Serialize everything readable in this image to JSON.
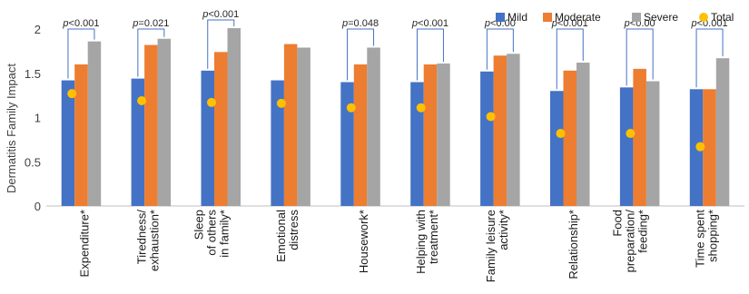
{
  "chart_data": {
    "type": "bar",
    "ylabel": "Dermatitis Family Impact",
    "ylim": [
      0,
      2
    ],
    "yticks": [
      "0",
      "0.5",
      "1",
      "1.5",
      "2"
    ],
    "grid": false,
    "legend_position": "top-right",
    "categories": [
      [
        "Expenditure*"
      ],
      [
        "Tiredness/",
        "exhaustion*"
      ],
      [
        "Sleep",
        "of others",
        "in family*"
      ],
      [
        "Emotional",
        "distress"
      ],
      [
        "Housework*"
      ],
      [
        "Helping with",
        "treatment*"
      ],
      [
        "Family leisure",
        "activity*"
      ],
      [
        "Relationship*"
      ],
      [
        "Food",
        "preparation/",
        "feeding*"
      ],
      [
        "Time spent",
        "shopping*"
      ]
    ],
    "series": [
      {
        "name": "Mild",
        "color": "#4472C4",
        "values": [
          1.42,
          1.44,
          1.53,
          1.42,
          1.4,
          1.4,
          1.52,
          1.3,
          1.34,
          1.32
        ]
      },
      {
        "name": "Moderate",
        "color": "#ED7D31",
        "values": [
          1.6,
          1.82,
          1.74,
          1.83,
          1.6,
          1.6,
          1.7,
          1.53,
          1.55,
          1.32
        ]
      },
      {
        "name": "Severe",
        "color": "#A5A5A5",
        "values": [
          1.86,
          1.89,
          2.01,
          1.79,
          1.79,
          1.61,
          1.72,
          1.62,
          1.41,
          1.67
        ]
      }
    ],
    "total": {
      "name": "Total",
      "color": "#FFC000",
      "values": [
        1.27,
        1.19,
        1.17,
        1.16,
        1.11,
        1.11,
        1.01,
        0.82,
        0.82,
        0.67
      ]
    },
    "pvalues": [
      "p<0.001",
      "p=0.021",
      "p<0.001",
      "",
      "p=0.048",
      "p<0.001",
      "p<0.00",
      "p<0.001",
      "p<0.00",
      "p<0.001"
    ]
  }
}
